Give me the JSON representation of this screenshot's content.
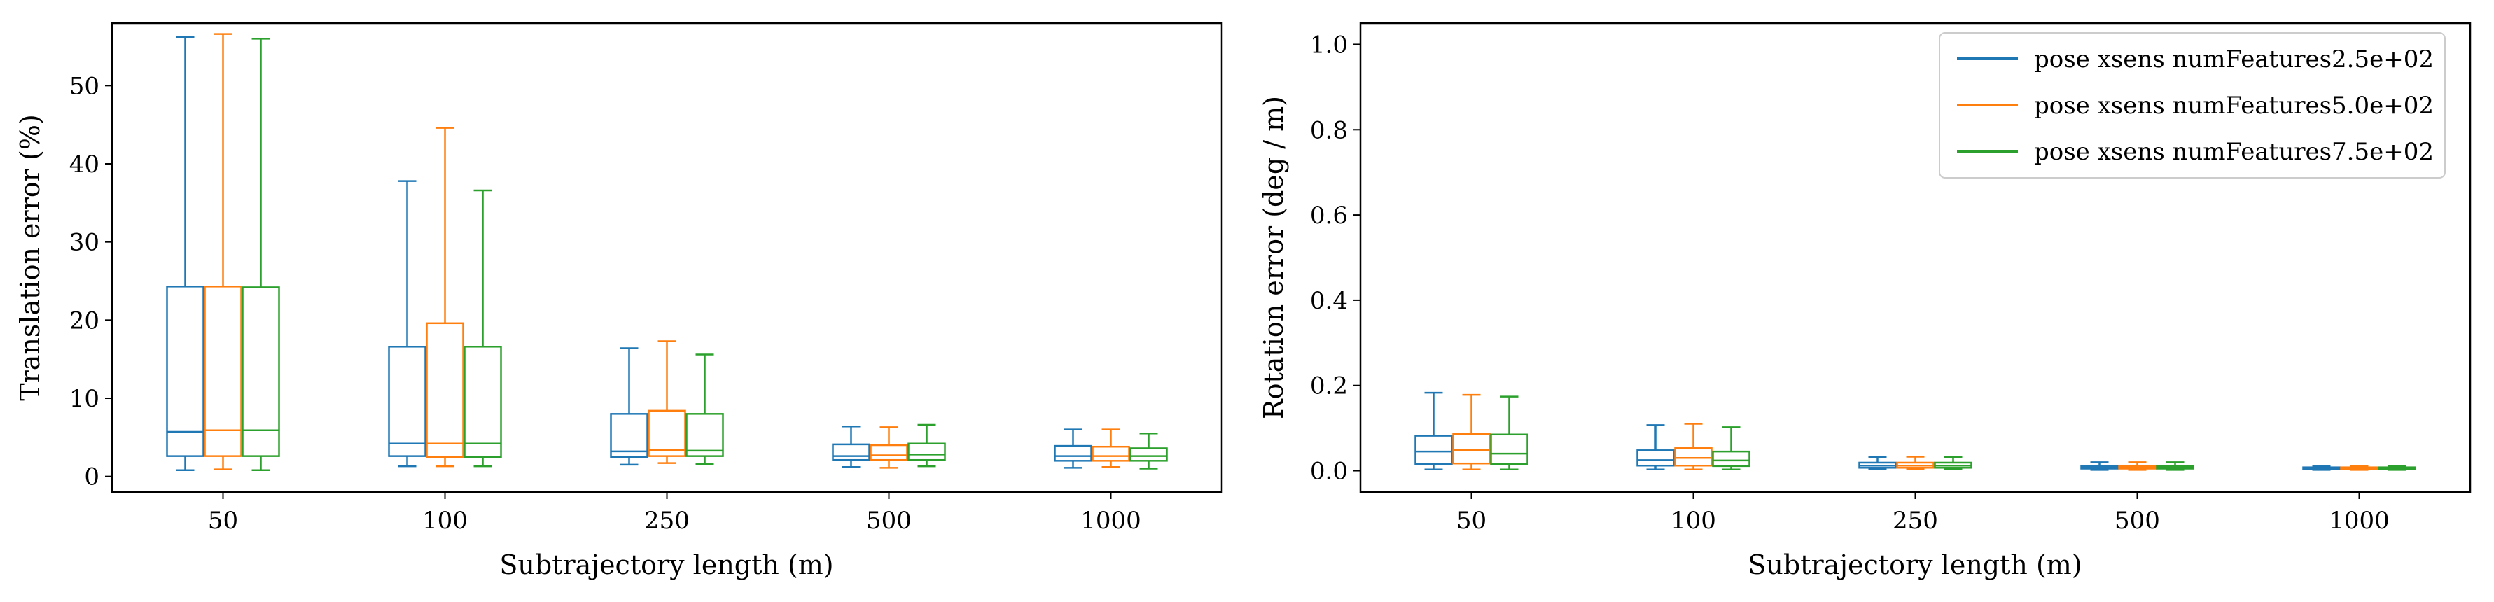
{
  "chart_data": [
    {
      "type": "box",
      "xlabel": "Subtrajectory length (m)",
      "ylabel": "Translation error (%)",
      "categories": [
        "50",
        "100",
        "250",
        "500",
        "1000"
      ],
      "ylim": [
        -2,
        58
      ],
      "yticks": [
        0,
        10,
        20,
        30,
        40,
        50
      ],
      "grid": false,
      "series": [
        {
          "name": "pose xsens numFeatures2.5e+02",
          "color": "#1f77b4",
          "boxes": [
            {
              "whisker_low": 0.8,
              "q1": 2.6,
              "median": 5.7,
              "q3": 24.3,
              "whisker_high": 56.2
            },
            {
              "whisker_low": 1.3,
              "q1": 2.6,
              "median": 4.2,
              "q3": 16.6,
              "whisker_high": 37.8
            },
            {
              "whisker_low": 1.5,
              "q1": 2.5,
              "median": 3.2,
              "q3": 8.0,
              "whisker_high": 16.4
            },
            {
              "whisker_low": 1.2,
              "q1": 2.1,
              "median": 2.6,
              "q3": 4.1,
              "whisker_high": 6.4
            },
            {
              "whisker_low": 1.1,
              "q1": 2.0,
              "median": 2.6,
              "q3": 3.9,
              "whisker_high": 6.0
            }
          ]
        },
        {
          "name": "pose xsens numFeatures5.0e+02",
          "color": "#ff7f0e",
          "boxes": [
            {
              "whisker_low": 0.9,
              "q1": 2.6,
              "median": 5.9,
              "q3": 24.3,
              "whisker_high": 56.6
            },
            {
              "whisker_low": 1.3,
              "q1": 2.5,
              "median": 4.2,
              "q3": 19.6,
              "whisker_high": 44.6
            },
            {
              "whisker_low": 1.7,
              "q1": 2.6,
              "median": 3.4,
              "q3": 8.4,
              "whisker_high": 17.3
            },
            {
              "whisker_low": 1.1,
              "q1": 2.1,
              "median": 2.7,
              "q3": 4.0,
              "whisker_high": 6.3
            },
            {
              "whisker_low": 1.2,
              "q1": 2.0,
              "median": 2.6,
              "q3": 3.8,
              "whisker_high": 6.0
            }
          ]
        },
        {
          "name": "pose xsens numFeatures7.5e+02",
          "color": "#2ca02c",
          "boxes": [
            {
              "whisker_low": 0.8,
              "q1": 2.6,
              "median": 5.9,
              "q3": 24.2,
              "whisker_high": 56.0
            },
            {
              "whisker_low": 1.3,
              "q1": 2.5,
              "median": 4.2,
              "q3": 16.6,
              "whisker_high": 36.6
            },
            {
              "whisker_low": 1.6,
              "q1": 2.6,
              "median": 3.3,
              "q3": 8.0,
              "whisker_high": 15.6
            },
            {
              "whisker_low": 1.3,
              "q1": 2.1,
              "median": 2.8,
              "q3": 4.2,
              "whisker_high": 6.6
            },
            {
              "whisker_low": 1.0,
              "q1": 2.0,
              "median": 2.6,
              "q3": 3.6,
              "whisker_high": 5.5
            }
          ]
        }
      ]
    },
    {
      "type": "box",
      "xlabel": "Subtrajectory length (m)",
      "ylabel": "Rotation error (deg / m)",
      "categories": [
        "50",
        "100",
        "250",
        "500",
        "1000"
      ],
      "ylim": [
        -0.05,
        1.05
      ],
      "yticks": [
        0.0,
        0.2,
        0.4,
        0.6,
        0.8,
        1.0
      ],
      "ytick_labels": [
        "0.0",
        "0.2",
        "0.4",
        "0.6",
        "0.8",
        "1.0"
      ],
      "grid": false,
      "legend_position": "top-right",
      "series": [
        {
          "name": "pose xsens numFeatures2.5e+02",
          "color": "#1f77b4",
          "boxes": [
            {
              "whisker_low": 0.003,
              "q1": 0.016,
              "median": 0.045,
              "q3": 0.082,
              "whisker_high": 0.183
            },
            {
              "whisker_low": 0.003,
              "q1": 0.012,
              "median": 0.025,
              "q3": 0.048,
              "whisker_high": 0.107
            },
            {
              "whisker_low": 0.003,
              "q1": 0.007,
              "median": 0.012,
              "q3": 0.019,
              "whisker_high": 0.032
            },
            {
              "whisker_low": 0.002,
              "q1": 0.005,
              "median": 0.008,
              "q3": 0.012,
              "whisker_high": 0.02
            },
            {
              "whisker_low": 0.002,
              "q1": 0.004,
              "median": 0.006,
              "q3": 0.008,
              "whisker_high": 0.012
            }
          ]
        },
        {
          "name": "pose xsens numFeatures5.0e+02",
          "color": "#ff7f0e",
          "boxes": [
            {
              "whisker_low": 0.003,
              "q1": 0.017,
              "median": 0.048,
              "q3": 0.086,
              "whisker_high": 0.178
            },
            {
              "whisker_low": 0.003,
              "q1": 0.012,
              "median": 0.03,
              "q3": 0.053,
              "whisker_high": 0.11
            },
            {
              "whisker_low": 0.003,
              "q1": 0.007,
              "median": 0.012,
              "q3": 0.019,
              "whisker_high": 0.033
            },
            {
              "whisker_low": 0.002,
              "q1": 0.005,
              "median": 0.008,
              "q3": 0.012,
              "whisker_high": 0.02
            },
            {
              "whisker_low": 0.002,
              "q1": 0.004,
              "median": 0.006,
              "q3": 0.008,
              "whisker_high": 0.012
            }
          ]
        },
        {
          "name": "pose xsens numFeatures7.5e+02",
          "color": "#2ca02c",
          "boxes": [
            {
              "whisker_low": 0.003,
              "q1": 0.016,
              "median": 0.04,
              "q3": 0.085,
              "whisker_high": 0.174
            },
            {
              "whisker_low": 0.003,
              "q1": 0.011,
              "median": 0.024,
              "q3": 0.045,
              "whisker_high": 0.102
            },
            {
              "whisker_low": 0.003,
              "q1": 0.007,
              "median": 0.012,
              "q3": 0.019,
              "whisker_high": 0.032
            },
            {
              "whisker_low": 0.002,
              "q1": 0.005,
              "median": 0.008,
              "q3": 0.012,
              "whisker_high": 0.02
            },
            {
              "whisker_low": 0.002,
              "q1": 0.004,
              "median": 0.006,
              "q3": 0.008,
              "whisker_high": 0.012
            }
          ]
        }
      ]
    }
  ]
}
